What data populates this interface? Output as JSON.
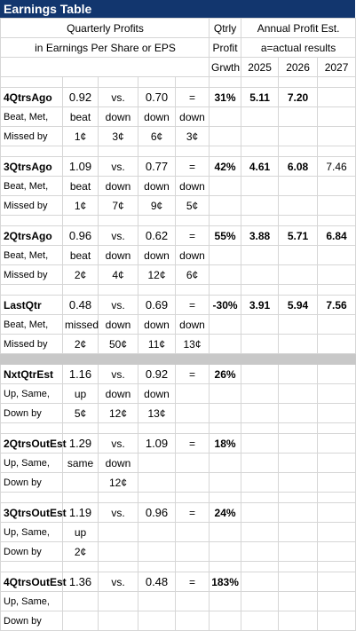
{
  "title": "Earnings Table",
  "header": {
    "line1": "Quarterly Profits",
    "line2": "in Earnings Per Share or EPS",
    "growth1": "Qtrly",
    "growth2": "Profit",
    "growth3": "Grwth",
    "annual": "Annual Profit Est.",
    "annual_sub": "a=actual results",
    "years": [
      "2025",
      "2026",
      "2027"
    ]
  },
  "common": {
    "vs": "vs.",
    "eq": "="
  },
  "quarters": [
    {
      "name": "4QtrsAgo",
      "sub1": "Beat, Met,",
      "sub2": "Missed by",
      "eps1": "0.92",
      "eps2": "0.70",
      "growth": "31%",
      "status": [
        "beat",
        "down",
        "down",
        "down"
      ],
      "amounts": [
        "1¢",
        "3¢",
        "6¢",
        "3¢"
      ],
      "annual": [
        "5.11",
        "7.20",
        ""
      ]
    },
    {
      "name": "3QtrsAgo",
      "sub1": "Beat, Met,",
      "sub2": "Missed by",
      "eps1": "1.09",
      "eps2": "0.77",
      "growth": "42%",
      "status": [
        "beat",
        "down",
        "down",
        "down"
      ],
      "amounts": [
        "1¢",
        "7¢",
        "9¢",
        "5¢"
      ],
      "annual": [
        "4.61",
        "6.08",
        "7.46"
      ]
    },
    {
      "name": "2QtrsAgo",
      "sub1": "Beat, Met,",
      "sub2": "Missed by",
      "eps1": "0.96",
      "eps2": "0.62",
      "growth": "55%",
      "status": [
        "beat",
        "down",
        "down",
        "down"
      ],
      "amounts": [
        "2¢",
        "4¢",
        "12¢",
        "6¢"
      ],
      "annual": [
        "3.88",
        "5.71",
        "6.84"
      ]
    },
    {
      "name": "LastQtr",
      "sub1": "Beat, Met,",
      "sub2": "Missed by",
      "eps1": "0.48",
      "eps2": "0.69",
      "growth": "-30%",
      "status": [
        "missed",
        "down",
        "down",
        "down"
      ],
      "amounts": [
        "2¢",
        "50¢",
        "11¢",
        "13¢"
      ],
      "annual": [
        "3.91",
        "5.94",
        "7.56"
      ]
    }
  ],
  "estimates": [
    {
      "name": "NxtQtrEst",
      "sub1": "Up, Same,",
      "sub2": "Down by",
      "eps1": "1.16",
      "eps2": "0.92",
      "growth": "26%",
      "status": [
        "up",
        "down",
        "down"
      ],
      "amounts": [
        "5¢",
        "12¢",
        "13¢"
      ]
    },
    {
      "name": "2QtrsOutEst",
      "sub1": "Up, Same,",
      "sub2": "Down by",
      "eps1": "1.29",
      "eps2": "1.09",
      "growth": "18%",
      "status": [
        "same",
        "down"
      ],
      "amounts": [
        "",
        "12¢"
      ]
    },
    {
      "name": "3QtrsOutEst",
      "sub1": "Up, Same,",
      "sub2": "Down by",
      "eps1": "1.19",
      "eps2": "0.96",
      "growth": "24%",
      "status": [
        "up"
      ],
      "amounts": [
        "2¢"
      ]
    },
    {
      "name": "4QtrsOutEst",
      "sub1": "Up, Same,",
      "sub2": "Down by",
      "eps1": "1.36",
      "eps2": "0.48",
      "growth": "183%",
      "status": [],
      "amounts": []
    }
  ]
}
